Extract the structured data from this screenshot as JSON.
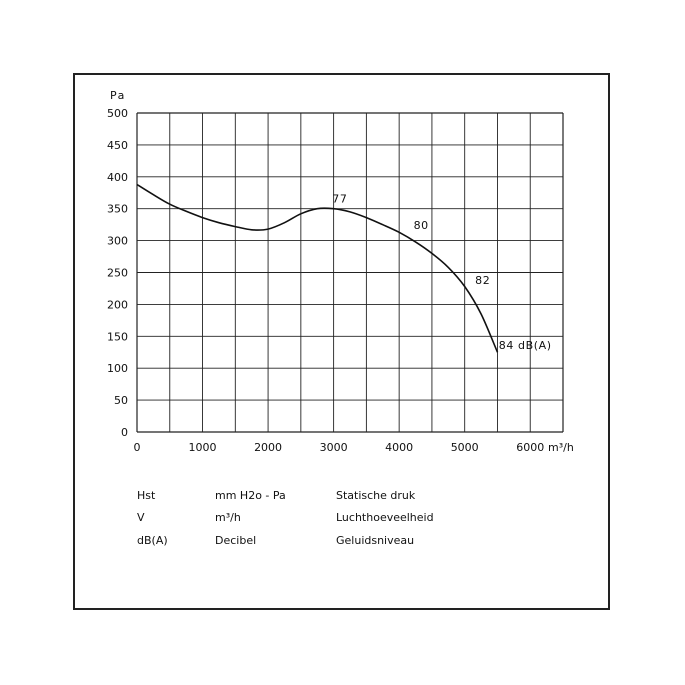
{
  "chart_data": {
    "type": "line",
    "ylabel": "Pa",
    "xlabel": "m³/h",
    "xlim": [
      0,
      6500
    ],
    "ylim": [
      0,
      500
    ],
    "x_ticks": [
      0,
      1000,
      2000,
      3000,
      4000,
      5000,
      6000
    ],
    "y_ticks": [
      0,
      50,
      100,
      150,
      200,
      250,
      300,
      350,
      400,
      450,
      500
    ],
    "grid": true,
    "grid_x_step": 500,
    "grid_y_step": 50,
    "series": [
      {
        "x": [
          0,
          250,
          500,
          750,
          1000,
          1250,
          1500,
          1750,
          2000,
          2250,
          2500,
          2750,
          3000,
          3250,
          3500,
          3750,
          4000,
          4250,
          4500,
          4750,
          5000,
          5250,
          5500
        ],
        "y": [
          388,
          372,
          357,
          346,
          336,
          328,
          322,
          317,
          318,
          328,
          342,
          350,
          350,
          345,
          336,
          325,
          313,
          298,
          280,
          258,
          228,
          185,
          125
        ]
      }
    ],
    "annotations": [
      {
        "text": "77",
        "x": 2980,
        "y": 360
      },
      {
        "text": "80",
        "x": 4220,
        "y": 318
      },
      {
        "text": "82",
        "x": 5160,
        "y": 232
      },
      {
        "text": "84 dB(A)",
        "x": 5520,
        "y": 130
      }
    ]
  },
  "legend": {
    "rows": [
      {
        "symbol": "Hst",
        "unit": "mm H2o - Pa",
        "description": "Statische druk"
      },
      {
        "symbol": "V",
        "unit": "m³/h",
        "description": "Luchthoeveelheid"
      },
      {
        "symbol": "dB(A)",
        "unit": "Decibel",
        "description": "Geluidsniveau"
      }
    ]
  },
  "colors": {
    "line": "#111111",
    "grid": "#222222",
    "frame": "#222222"
  }
}
